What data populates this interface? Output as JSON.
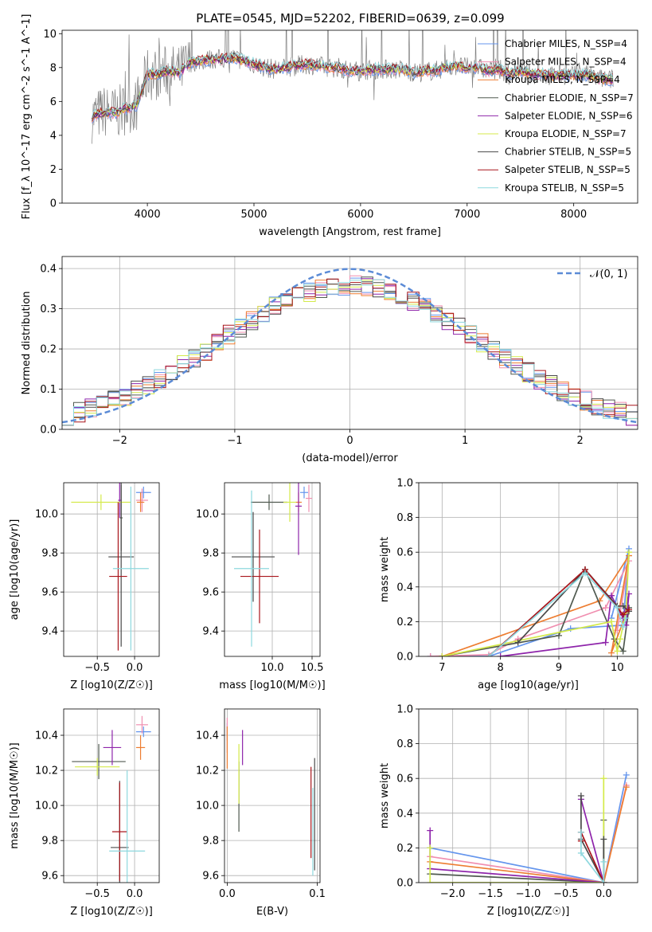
{
  "figure_title": "PLATE=0545, MJD=52202, FIBERID=0639, z=0.099",
  "colors": {
    "Chabrier MILES": "#6495ed",
    "Salpeter MILES": "#f08fb0",
    "Kroupa MILES": "#ed7d31",
    "Chabrier ELODIE": "#505a50",
    "Salpeter ELODIE": "#8e24aa",
    "Kroupa ELODIE": "#d4ea4a",
    "Chabrier STELIB": "#4a4a4a",
    "Salpeter STELIB": "#a8151b",
    "Kroupa STELIB": "#8ed8de"
  },
  "chart_data": [
    {
      "id": "spectrum",
      "type": "line",
      "title": "PLATE=0545, MJD=52202, FIBERID=0639, z=0.099",
      "xlabel": "wavelength [Angstrom, rest frame]",
      "ylabel": "Flux [f_λ 10^-17 erg cm^-2 s^-1 A^-1]",
      "xlim": [
        3200,
        8600
      ],
      "ylim": [
        0,
        10.2
      ],
      "xticks": [
        4000,
        5000,
        6000,
        7000,
        8000
      ],
      "yticks": [
        0,
        2,
        4,
        6,
        8,
        10
      ],
      "legend_position": "right",
      "legend": [
        "Chabrier MILES, N_SSP=4",
        "Salpeter MILES, N_SSP=4",
        "Kroupa MILES, N_SSP=4",
        "Chabrier ELODIE, N_SSP=7",
        "Salpeter ELODIE, N_SSP=6",
        "Kroupa ELODIE, N_SSP=7",
        "Chabrier STELIB, N_SSP=5",
        "Salpeter STELIB, N_SSP=5",
        "Kroupa STELIB, N_SSP=5"
      ],
      "continuum": [
        [
          3480,
          5.1
        ],
        [
          3600,
          5.4
        ],
        [
          3700,
          5.3
        ],
        [
          3800,
          5.6
        ],
        [
          3900,
          5.8
        ],
        [
          4000,
          7.6
        ],
        [
          4100,
          7.6
        ],
        [
          4200,
          7.8
        ],
        [
          4300,
          7.7
        ],
        [
          4400,
          8.3
        ],
        [
          4500,
          8.4
        ],
        [
          4600,
          8.5
        ],
        [
          4700,
          8.5
        ],
        [
          4800,
          8.6
        ],
        [
          4900,
          8.4
        ],
        [
          5000,
          8.2
        ],
        [
          5100,
          8.0
        ],
        [
          5200,
          7.9
        ],
        [
          5300,
          8.0
        ],
        [
          5400,
          8.1
        ],
        [
          5500,
          8.2
        ],
        [
          5600,
          8.1
        ],
        [
          5700,
          8.0
        ],
        [
          5800,
          8.0
        ],
        [
          5900,
          7.8
        ],
        [
          6000,
          7.8
        ],
        [
          6100,
          7.9
        ],
        [
          6200,
          7.9
        ],
        [
          6300,
          7.9
        ],
        [
          6400,
          7.9
        ],
        [
          6500,
          7.7
        ],
        [
          6600,
          7.8
        ],
        [
          6700,
          7.8
        ],
        [
          6800,
          8.0
        ],
        [
          6900,
          8.1
        ],
        [
          7000,
          8.0
        ],
        [
          7100,
          8.0
        ],
        [
          7200,
          7.8
        ],
        [
          7300,
          7.9
        ],
        [
          7400,
          7.6
        ],
        [
          7500,
          7.8
        ],
        [
          7600,
          7.6
        ],
        [
          7700,
          7.6
        ],
        [
          7800,
          7.5
        ],
        [
          7900,
          7.6
        ],
        [
          8000,
          7.5
        ],
        [
          8100,
          7.6
        ],
        [
          8200,
          7.4
        ],
        [
          8300,
          7.3
        ],
        [
          8370,
          7.3
        ]
      ]
    },
    {
      "id": "residuals",
      "type": "line",
      "xlabel": "(data-model)/error",
      "ylabel": "Normed distribution",
      "xlim": [
        -2.5,
        2.5
      ],
      "ylim": [
        0,
        0.43
      ],
      "xticks": [
        -2,
        -1,
        0,
        1,
        2
      ],
      "yticks": [
        0.0,
        0.1,
        0.2,
        0.3,
        0.4
      ],
      "legend_position": "top-right",
      "legend": [
        "𝒩(0, 1)"
      ]
    },
    {
      "id": "age-vs-Z",
      "type": "scatter",
      "xlabel": "Z [log10(Z/Z☉)]",
      "ylabel": "age  [log10(age/yr)]",
      "xlim": [
        -0.95,
        0.33
      ],
      "ylim": [
        9.27,
        10.16
      ],
      "xticks": [
        -0.5,
        0.0
      ],
      "yticks": [
        9.4,
        9.6,
        9.8,
        10.0
      ],
      "points": [
        {
          "model": "Chabrier MILES",
          "x": 0.12,
          "y": 10.11,
          "xerr": 0.1,
          "yerr": 0.03
        },
        {
          "model": "Salpeter MILES",
          "x": 0.1,
          "y": 10.07,
          "xerr": 0.08,
          "yerr": 0.06
        },
        {
          "model": "Kroupa MILES",
          "x": 0.08,
          "y": 10.06,
          "xerr": 0.05,
          "yerr": 0.05
        },
        {
          "model": "Chabrier ELODIE",
          "x": -0.18,
          "y": 9.98,
          "xerr": 0.02,
          "yerr": 0.17
        },
        {
          "model": "Salpeter ELODIE",
          "x": -0.2,
          "y": 10.07,
          "xerr": 0.02,
          "yerr": 0.09
        },
        {
          "model": "Kroupa ELODIE",
          "x": -0.45,
          "y": 10.06,
          "xerr": 0.4,
          "yerr": 0.04
        },
        {
          "model": "Chabrier STELIB",
          "x": -0.18,
          "y": 9.78,
          "xerr": 0.17,
          "yerr": 0.46
        },
        {
          "model": "Salpeter STELIB",
          "x": -0.22,
          "y": 9.68,
          "xerr": 0.12,
          "yerr": 0.38
        },
        {
          "model": "Kroupa STELIB",
          "x": -0.05,
          "y": 9.72,
          "xerr": 0.24,
          "yerr": 0.42
        }
      ]
    },
    {
      "id": "age-vs-mass",
      "type": "scatter",
      "xlabel": "mass [log10(M/M☉)]",
      "xlim": [
        9.4,
        10.6
      ],
      "ylim": [
        9.27,
        10.16
      ],
      "xticks": [
        10.0,
        10.5
      ],
      "yticks": [
        9.4,
        9.6,
        9.8,
        10.0
      ],
      "points": [
        {
          "model": "Chabrier MILES",
          "x": 10.4,
          "y": 10.11,
          "xerr": 0.05,
          "yerr": 0.03
        },
        {
          "model": "Salpeter MILES",
          "x": 10.46,
          "y": 10.08,
          "xerr": 0.04,
          "yerr": 0.07
        },
        {
          "model": "Kroupa MILES",
          "x": 10.33,
          "y": 10.06,
          "xerr": 0.04,
          "yerr": 0.05
        },
        {
          "model": "Chabrier ELODIE",
          "x": 9.96,
          "y": 10.06,
          "xerr": 0.23,
          "yerr": 0.04
        },
        {
          "model": "Salpeter ELODIE",
          "x": 10.33,
          "y": 10.04,
          "xerr": 0.04,
          "yerr": 0.25
        },
        {
          "model": "Kroupa ELODIE",
          "x": 10.22,
          "y": 10.06,
          "xerr": 0.08,
          "yerr": 0.1
        },
        {
          "model": "Chabrier STELIB",
          "x": 9.76,
          "y": 9.78,
          "xerr": 0.27,
          "yerr": 0.23
        },
        {
          "model": "Salpeter STELIB",
          "x": 9.84,
          "y": 9.68,
          "xerr": 0.24,
          "yerr": 0.24
        },
        {
          "model": "Kroupa STELIB",
          "x": 9.74,
          "y": 9.72,
          "xerr": 0.22,
          "yerr": 0.4
        }
      ]
    },
    {
      "id": "weight-vs-age",
      "type": "line",
      "xlabel": "age  [log10(age/yr)]",
      "ylabel": "mass weight",
      "xlim": [
        6.6,
        10.35
      ],
      "ylim": [
        0,
        1
      ],
      "xticks": [
        7,
        8,
        9,
        10
      ],
      "yticks": [
        0.0,
        0.2,
        0.4,
        0.6,
        0.8,
        1.0
      ],
      "series": [
        {
          "model": "Chabrier MILES",
          "x": [
            6.8,
            7.8,
            9.2,
            10.1,
            10.2,
            9.9
          ],
          "y": [
            0.0,
            0.0,
            0.16,
            0.18,
            0.62,
            0.22
          ]
        },
        {
          "model": "Salpeter MILES",
          "x": [
            6.8,
            7.8,
            8.3,
            9.8,
            10.2,
            10.0
          ],
          "y": [
            0.0,
            0.01,
            0.1,
            0.28,
            0.55,
            0.15
          ]
        },
        {
          "model": "Kroupa MILES",
          "x": [
            7.0,
            9.7,
            10.2,
            9.9,
            10.1
          ],
          "y": [
            0.0,
            0.32,
            0.58,
            0.02,
            0.2
          ]
        },
        {
          "model": "Chabrier ELODIE",
          "x": [
            7.0,
            9.0,
            9.45,
            9.95,
            10.1,
            10.2
          ],
          "y": [
            0.0,
            0.12,
            0.5,
            0.1,
            0.03,
            0.28
          ]
        },
        {
          "model": "Salpeter ELODIE",
          "x": [
            8.0,
            9.8,
            9.9,
            10.1,
            10.2,
            10.15
          ],
          "y": [
            0.0,
            0.08,
            0.35,
            0.22,
            0.36,
            0.18
          ]
        },
        {
          "model": "Kroupa ELODIE",
          "x": [
            7.0,
            9.9,
            10.0,
            10.05,
            10.15,
            10.2
          ],
          "y": [
            0.0,
            0.2,
            0.03,
            0.1,
            0.25,
            0.6
          ]
        },
        {
          "model": "Chabrier STELIB",
          "x": [
            8.3,
            9.45,
            10.0,
            10.1,
            10.2
          ],
          "y": [
            0.08,
            0.5,
            0.29,
            0.29,
            0.26
          ]
        },
        {
          "model": "Salpeter STELIB",
          "x": [
            7.8,
            9.45,
            10.1,
            10.2
          ],
          "y": [
            0.0,
            0.5,
            0.24,
            0.27
          ]
        },
        {
          "model": "Kroupa STELIB",
          "x": [
            7.8,
            9.45,
            10.0,
            10.1,
            10.15
          ],
          "y": [
            0.0,
            0.48,
            0.28,
            0.17,
            0.22
          ]
        }
      ]
    },
    {
      "id": "mass-vs-Z",
      "type": "scatter",
      "xlabel": "Z [log10(Z/Z☉)]",
      "ylabel": "mass [log10(M/M☉)]",
      "xlim": [
        -0.95,
        0.33
      ],
      "ylim": [
        9.56,
        10.55
      ],
      "xticks": [
        -0.5,
        0.0
      ],
      "yticks": [
        9.6,
        9.8,
        10.0,
        10.2,
        10.4
      ],
      "points": [
        {
          "model": "Chabrier MILES",
          "x": 0.12,
          "y": 10.42,
          "xerr": 0.1,
          "yerr": 0.03
        },
        {
          "model": "Salpeter MILES",
          "x": 0.1,
          "y": 10.46,
          "xerr": 0.08,
          "yerr": 0.05
        },
        {
          "model": "Kroupa MILES",
          "x": 0.08,
          "y": 10.33,
          "xerr": 0.06,
          "yerr": 0.07
        },
        {
          "model": "Chabrier ELODIE",
          "x": -0.48,
          "y": 10.25,
          "xerr": 0.36,
          "yerr": 0.1
        },
        {
          "model": "Salpeter ELODIE",
          "x": -0.3,
          "y": 10.33,
          "xerr": 0.12,
          "yerr": 0.1
        },
        {
          "model": "Kroupa ELODIE",
          "x": -0.5,
          "y": 10.22,
          "xerr": 0.3,
          "yerr": 0.05
        },
        {
          "model": "Chabrier STELIB",
          "x": -0.2,
          "y": 9.76,
          "xerr": 0.12,
          "yerr": 0.38
        },
        {
          "model": "Salpeter STELIB",
          "x": -0.2,
          "y": 9.85,
          "xerr": 0.1,
          "yerr": 0.28
        },
        {
          "model": "Kroupa STELIB",
          "x": -0.1,
          "y": 9.74,
          "xerr": 0.24,
          "yerr": 0.46
        }
      ]
    },
    {
      "id": "mass-vs-EBV",
      "type": "scatter",
      "xlabel": "E(B-V)",
      "xlim": [
        -0.003,
        0.103
      ],
      "ylim": [
        9.56,
        10.55
      ],
      "xticks": [
        0.0,
        0.1
      ],
      "yticks": [
        9.6,
        9.8,
        10.0,
        10.2,
        10.4
      ],
      "points": [
        {
          "model": "Chabrier MILES",
          "x": 0.0,
          "y": 10.42,
          "yerr": 0.05
        },
        {
          "model": "Salpeter MILES",
          "x": 0.0,
          "y": 10.4,
          "yerr": 0.1
        },
        {
          "model": "Kroupa MILES",
          "x": 0.0,
          "y": 10.33,
          "yerr": 0.12
        },
        {
          "model": "Chabrier ELODIE",
          "x": 0.013,
          "y": 10.05,
          "yerr": 0.2
        },
        {
          "model": "Salpeter ELODIE",
          "x": 0.017,
          "y": 10.33,
          "yerr": 0.1
        },
        {
          "model": "Kroupa ELODIE",
          "x": 0.013,
          "y": 10.18,
          "yerr": 0.17
        },
        {
          "model": "Chabrier STELIB",
          "x": 0.097,
          "y": 9.95,
          "yerr": 0.32
        },
        {
          "model": "Salpeter STELIB",
          "x": 0.093,
          "y": 9.96,
          "yerr": 0.26
        },
        {
          "model": "Kroupa STELIB",
          "x": 0.095,
          "y": 9.85,
          "yerr": 0.25
        }
      ]
    },
    {
      "id": "weight-vs-Z",
      "type": "line",
      "xlabel": "Z [log10(Z/Z☉)]",
      "ylabel": "mass weight",
      "xlim": [
        -2.45,
        0.45
      ],
      "ylim": [
        0,
        1
      ],
      "xticks": [
        -2.0,
        -1.5,
        -1.0,
        -0.5,
        0.0
      ],
      "yticks": [
        0.0,
        0.2,
        0.4,
        0.6,
        0.8,
        1.0
      ],
      "series": [
        {
          "model": "Chabrier MILES",
          "x": [
            -2.3,
            0.0,
            0.3
          ],
          "y": [
            0.2,
            0.0,
            0.62
          ]
        },
        {
          "model": "Salpeter MILES",
          "x": [
            -2.3,
            0.0,
            0.3
          ],
          "y": [
            0.15,
            0.0,
            0.56
          ]
        },
        {
          "model": "Kroupa MILES",
          "x": [
            -2.3,
            0.0,
            0.3
          ],
          "y": [
            0.12,
            0.0,
            0.55
          ]
        },
        {
          "model": "Chabrier ELODIE",
          "x": [
            -2.3,
            0.0,
            0.0
          ],
          "y": [
            0.05,
            0.0,
            0.36
          ]
        },
        {
          "model": "Salpeter ELODIE",
          "x": [
            -2.3,
            -2.3,
            0.0,
            -0.3
          ],
          "y": [
            0.3,
            0.08,
            0.0,
            0.48
          ]
        },
        {
          "model": "Kroupa ELODIE",
          "x": [
            -2.3,
            -2.3,
            0.0,
            0.0
          ],
          "y": [
            0.2,
            0.0,
            0.0,
            0.6
          ]
        },
        {
          "model": "Chabrier STELIB",
          "x": [
            -0.3,
            -0.3,
            0.0,
            0.0
          ],
          "y": [
            0.5,
            0.25,
            0.0,
            0.25
          ]
        },
        {
          "model": "Salpeter STELIB",
          "x": [
            -0.3,
            -0.3,
            0.0
          ],
          "y": [
            0.24,
            0.29,
            0.0
          ]
        },
        {
          "model": "Kroupa STELIB",
          "x": [
            -0.3,
            -0.3,
            0.0,
            0.0
          ],
          "y": [
            0.29,
            0.17,
            0.0,
            0.12
          ]
        }
      ]
    }
  ]
}
